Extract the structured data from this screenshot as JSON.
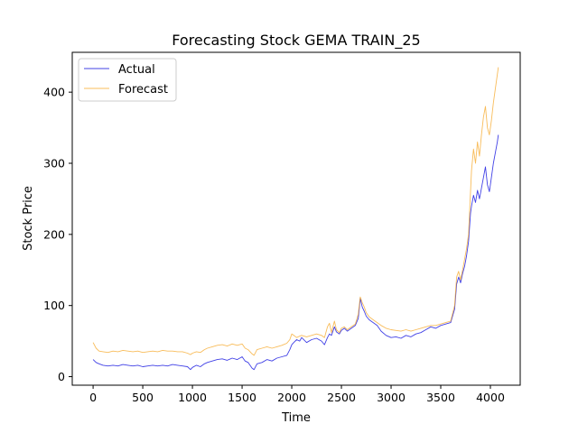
{
  "chart_data": {
    "type": "line",
    "title": "Forecasting Stock GEMA TRAIN_25",
    "xlabel": "Time",
    "ylabel": "Stock Price",
    "xlim": [
      -210,
      4300
    ],
    "ylim": [
      -12,
      456
    ],
    "x_ticks": [
      0,
      500,
      1000,
      1500,
      2000,
      2500,
      3000,
      3500,
      4000
    ],
    "y_ticks": [
      0,
      100,
      200,
      300,
      400
    ],
    "grid": false,
    "legend": "upper-left",
    "series": [
      {
        "name": "Actual",
        "color": "#0000dd",
        "points": [
          [
            0,
            24
          ],
          [
            30,
            20
          ],
          [
            60,
            18
          ],
          [
            100,
            16
          ],
          [
            150,
            15
          ],
          [
            200,
            16
          ],
          [
            250,
            15
          ],
          [
            300,
            17
          ],
          [
            350,
            16
          ],
          [
            400,
            15
          ],
          [
            450,
            16
          ],
          [
            500,
            14
          ],
          [
            550,
            15
          ],
          [
            600,
            16
          ],
          [
            650,
            15
          ],
          [
            700,
            16
          ],
          [
            750,
            15
          ],
          [
            800,
            17
          ],
          [
            850,
            16
          ],
          [
            900,
            15
          ],
          [
            950,
            14
          ],
          [
            980,
            10
          ],
          [
            1000,
            13
          ],
          [
            1040,
            16
          ],
          [
            1080,
            14
          ],
          [
            1120,
            18
          ],
          [
            1150,
            20
          ],
          [
            1200,
            22
          ],
          [
            1250,
            24
          ],
          [
            1300,
            25
          ],
          [
            1350,
            23
          ],
          [
            1400,
            26
          ],
          [
            1450,
            24
          ],
          [
            1500,
            28
          ],
          [
            1530,
            22
          ],
          [
            1560,
            20
          ],
          [
            1600,
            12
          ],
          [
            1620,
            10
          ],
          [
            1650,
            18
          ],
          [
            1700,
            20
          ],
          [
            1750,
            24
          ],
          [
            1800,
            22
          ],
          [
            1850,
            26
          ],
          [
            1900,
            28
          ],
          [
            1950,
            30
          ],
          [
            1980,
            38
          ],
          [
            2000,
            45
          ],
          [
            2020,
            48
          ],
          [
            2050,
            52
          ],
          [
            2080,
            50
          ],
          [
            2100,
            55
          ],
          [
            2150,
            48
          ],
          [
            2200,
            52
          ],
          [
            2250,
            54
          ],
          [
            2300,
            50
          ],
          [
            2330,
            45
          ],
          [
            2360,
            55
          ],
          [
            2380,
            60
          ],
          [
            2400,
            58
          ],
          [
            2430,
            70
          ],
          [
            2450,
            63
          ],
          [
            2480,
            60
          ],
          [
            2500,
            65
          ],
          [
            2530,
            68
          ],
          [
            2560,
            64
          ],
          [
            2600,
            68
          ],
          [
            2640,
            72
          ],
          [
            2670,
            82
          ],
          [
            2690,
            110
          ],
          [
            2710,
            98
          ],
          [
            2730,
            92
          ],
          [
            2750,
            85
          ],
          [
            2780,
            80
          ],
          [
            2820,
            76
          ],
          [
            2860,
            72
          ],
          [
            2900,
            64
          ],
          [
            2950,
            58
          ],
          [
            3000,
            55
          ],
          [
            3050,
            56
          ],
          [
            3100,
            54
          ],
          [
            3150,
            58
          ],
          [
            3200,
            56
          ],
          [
            3250,
            60
          ],
          [
            3300,
            62
          ],
          [
            3350,
            66
          ],
          [
            3400,
            70
          ],
          [
            3450,
            68
          ],
          [
            3500,
            72
          ],
          [
            3550,
            74
          ],
          [
            3600,
            76
          ],
          [
            3640,
            95
          ],
          [
            3660,
            130
          ],
          [
            3680,
            140
          ],
          [
            3700,
            132
          ],
          [
            3720,
            145
          ],
          [
            3740,
            155
          ],
          [
            3760,
            170
          ],
          [
            3780,
            190
          ],
          [
            3800,
            230
          ],
          [
            3810,
            240
          ],
          [
            3830,
            255
          ],
          [
            3850,
            245
          ],
          [
            3870,
            262
          ],
          [
            3890,
            250
          ],
          [
            3910,
            265
          ],
          [
            3930,
            280
          ],
          [
            3950,
            295
          ],
          [
            3970,
            270
          ],
          [
            3990,
            260
          ],
          [
            4010,
            280
          ],
          [
            4030,
            300
          ],
          [
            4050,
            315
          ],
          [
            4070,
            330
          ],
          [
            4080,
            340
          ]
        ]
      },
      {
        "name": "Forecast",
        "color": "#f5a623",
        "points": [
          [
            0,
            48
          ],
          [
            30,
            40
          ],
          [
            60,
            36
          ],
          [
            100,
            35
          ],
          [
            150,
            34
          ],
          [
            200,
            36
          ],
          [
            250,
            35
          ],
          [
            300,
            37
          ],
          [
            350,
            36
          ],
          [
            400,
            35
          ],
          [
            450,
            36
          ],
          [
            500,
            34
          ],
          [
            550,
            35
          ],
          [
            600,
            36
          ],
          [
            650,
            35
          ],
          [
            700,
            37
          ],
          [
            750,
            36
          ],
          [
            800,
            36
          ],
          [
            850,
            35
          ],
          [
            900,
            35
          ],
          [
            950,
            33
          ],
          [
            980,
            31
          ],
          [
            1000,
            33
          ],
          [
            1040,
            35
          ],
          [
            1080,
            34
          ],
          [
            1120,
            38
          ],
          [
            1150,
            40
          ],
          [
            1200,
            42
          ],
          [
            1250,
            44
          ],
          [
            1300,
            45
          ],
          [
            1350,
            43
          ],
          [
            1400,
            46
          ],
          [
            1450,
            44
          ],
          [
            1500,
            46
          ],
          [
            1530,
            40
          ],
          [
            1560,
            38
          ],
          [
            1600,
            32
          ],
          [
            1620,
            30
          ],
          [
            1650,
            38
          ],
          [
            1700,
            40
          ],
          [
            1750,
            42
          ],
          [
            1800,
            40
          ],
          [
            1850,
            42
          ],
          [
            1900,
            44
          ],
          [
            1950,
            47
          ],
          [
            1980,
            52
          ],
          [
            2000,
            60
          ],
          [
            2020,
            58
          ],
          [
            2050,
            55
          ],
          [
            2080,
            57
          ],
          [
            2100,
            58
          ],
          [
            2150,
            56
          ],
          [
            2200,
            58
          ],
          [
            2250,
            60
          ],
          [
            2300,
            58
          ],
          [
            2330,
            55
          ],
          [
            2360,
            70
          ],
          [
            2380,
            75
          ],
          [
            2400,
            62
          ],
          [
            2430,
            78
          ],
          [
            2450,
            66
          ],
          [
            2480,
            62
          ],
          [
            2500,
            68
          ],
          [
            2530,
            70
          ],
          [
            2560,
            66
          ],
          [
            2600,
            70
          ],
          [
            2640,
            74
          ],
          [
            2670,
            88
          ],
          [
            2690,
            112
          ],
          [
            2710,
            104
          ],
          [
            2730,
            98
          ],
          [
            2750,
            90
          ],
          [
            2780,
            84
          ],
          [
            2820,
            80
          ],
          [
            2860,
            76
          ],
          [
            2900,
            72
          ],
          [
            2950,
            68
          ],
          [
            3000,
            66
          ],
          [
            3050,
            65
          ],
          [
            3100,
            64
          ],
          [
            3150,
            66
          ],
          [
            3200,
            64
          ],
          [
            3250,
            66
          ],
          [
            3300,
            68
          ],
          [
            3350,
            70
          ],
          [
            3400,
            72
          ],
          [
            3450,
            72
          ],
          [
            3500,
            74
          ],
          [
            3550,
            76
          ],
          [
            3600,
            78
          ],
          [
            3640,
            100
          ],
          [
            3660,
            140
          ],
          [
            3680,
            148
          ],
          [
            3700,
            136
          ],
          [
            3720,
            150
          ],
          [
            3740,
            165
          ],
          [
            3760,
            180
          ],
          [
            3780,
            200
          ],
          [
            3800,
            260
          ],
          [
            3810,
            290
          ],
          [
            3830,
            320
          ],
          [
            3850,
            300
          ],
          [
            3870,
            330
          ],
          [
            3890,
            310
          ],
          [
            3910,
            340
          ],
          [
            3930,
            365
          ],
          [
            3950,
            380
          ],
          [
            3970,
            350
          ],
          [
            3990,
            340
          ],
          [
            4010,
            360
          ],
          [
            4030,
            385
          ],
          [
            4050,
            405
          ],
          [
            4070,
            425
          ],
          [
            4080,
            435
          ]
        ]
      }
    ]
  }
}
